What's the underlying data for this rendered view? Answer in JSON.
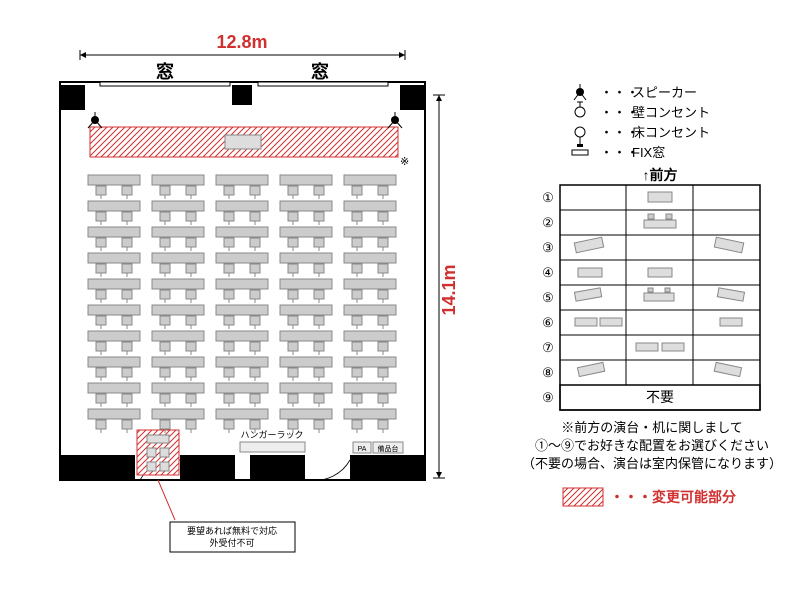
{
  "dimensions": {
    "width_label": "12.8m",
    "height_label": "14.1m",
    "width_color": "#d03030",
    "height_color": "#d03030"
  },
  "floor_plan": {
    "windows_label": "窓",
    "hanger_rack_label": "ハンガーラック",
    "pa_label": "PA",
    "equipment_label": "備品台",
    "changeable_fill": "#e89090",
    "changeable_pattern": "diagonal-hatch",
    "wall_color": "#000000",
    "furniture_color": "#cccccc",
    "chair_color": "#888888",
    "desk_rows": 10,
    "desk_columns": 5,
    "star_marker": "※",
    "bottom_note": "要望あれば無料で対応\n外受付不可"
  },
  "legend": {
    "items": [
      {
        "icon": "speaker",
        "label": "スピーカー"
      },
      {
        "icon": "wall-outlet",
        "label": "壁コンセント"
      },
      {
        "icon": "floor-outlet",
        "label": "床コンセント"
      },
      {
        "icon": "fix-window",
        "label": "FIX窓"
      }
    ],
    "front_label": "↑前方",
    "options_count": 9,
    "option_numbers": [
      "①",
      "②",
      "③",
      "④",
      "⑤",
      "⑥",
      "⑦",
      "⑧",
      "⑨"
    ],
    "not_needed_label": "不要",
    "note_lines": [
      "※前方の演台・机に関しまして",
      "①～⑨でお好きな配置をお選びください",
      "（不要の場合、演台は室内保管になります）"
    ],
    "changeable_label": "・・・変更可能部分",
    "changeable_swatch_color": "#d03030"
  },
  "colors": {
    "text": "#000000",
    "red_text": "#d03030",
    "border": "#000000",
    "gray_light": "#dddddd",
    "gray_mid": "#aaaaaa"
  }
}
